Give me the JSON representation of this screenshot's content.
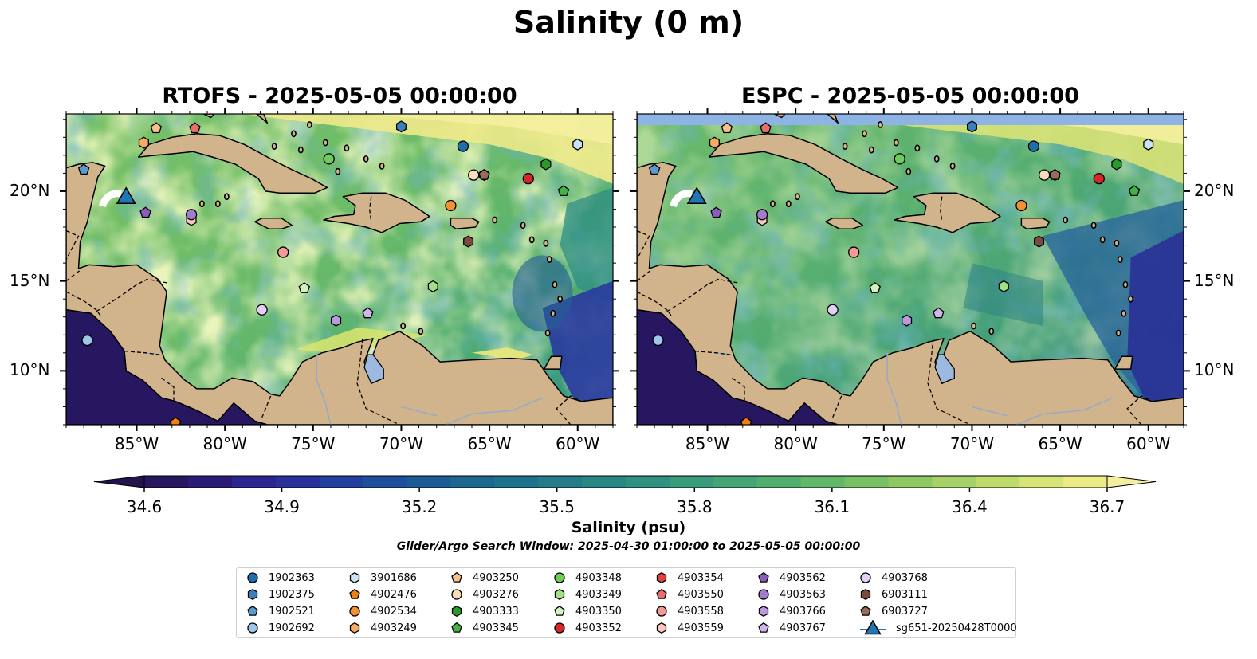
{
  "figure": {
    "suptitle": "Salinity (0 m)",
    "panels": [
      {
        "title": "RTOFS - 2025-05-05 00:00:00"
      },
      {
        "title": "ESPC - 2025-05-05 00:00:00"
      }
    ],
    "colorbar": {
      "label": "Salinity (psu)",
      "min": 34.6,
      "max": 36.7,
      "step": 0.1,
      "ticks": [
        "34.6",
        "34.9",
        "35.2",
        "35.5",
        "35.8",
        "36.1",
        "36.4",
        "36.7"
      ],
      "colors": [
        "#271660",
        "#2b1b77",
        "#2b2590",
        "#27309b",
        "#2240a0",
        "#1e4f9c",
        "#1c5c96",
        "#1d6890",
        "#1f728c",
        "#237d88",
        "#288785",
        "#2e9181",
        "#379b7c",
        "#43a575",
        "#52ae6f",
        "#63b769",
        "#78c064",
        "#8dc863",
        "#a6d166",
        "#bedb6c",
        "#d6e575",
        "#eceb85"
      ],
      "under_color": "#24144e",
      "over_color": "#f4ef9e"
    },
    "search_window": "Glider/Argo Search Window: 2025-04-30 01:00:00 to 2025-05-05 00:00:00",
    "colors": {
      "land": "#d2b48c",
      "water_lake": "#9db9e0",
      "river": "#97aac6",
      "deep_pacific": "#271660",
      "nodata_band": "#8eb4e6"
    }
  },
  "axes": {
    "lon_labels": [
      "85°W",
      "80°W",
      "75°W",
      "70°W",
      "65°W",
      "60°W"
    ],
    "lat_labels": [
      "20°N",
      "15°N",
      "10°N"
    ],
    "lon_values": [
      -85,
      -80,
      -75,
      -70,
      -65,
      -60
    ],
    "lat_values": [
      20,
      15,
      10
    ],
    "extent": {
      "lon_min": -89,
      "lon_max": -58,
      "lat_min": 7,
      "lat_max": 24.3
    }
  },
  "legend": {
    "items": [
      {
        "id": "1902363",
        "marker": "circle",
        "color": "#1f6ea9"
      },
      {
        "id": "1902375",
        "marker": "hexagon",
        "color": "#3a7fb8"
      },
      {
        "id": "1902521",
        "marker": "pentagon",
        "color": "#5b9bd0"
      },
      {
        "id": "1902692",
        "marker": "circle",
        "color": "#9ec6e8"
      },
      {
        "id": "3901686",
        "marker": "hexagon",
        "color": "#c9e3f5"
      },
      {
        "id": "4902476",
        "marker": "pentagon",
        "color": "#f07f12"
      },
      {
        "id": "4902534",
        "marker": "circle",
        "color": "#f5902e"
      },
      {
        "id": "4903249",
        "marker": "hexagon",
        "color": "#f7ac62"
      },
      {
        "id": "4903250",
        "marker": "pentagon",
        "color": "#f8c08a"
      },
      {
        "id": "4903276",
        "marker": "circle",
        "color": "#fbdcba"
      },
      {
        "id": "4903333",
        "marker": "hexagon",
        "color": "#2a9a2a"
      },
      {
        "id": "4903345",
        "marker": "pentagon",
        "color": "#44b344"
      },
      {
        "id": "4903348",
        "marker": "circle",
        "color": "#6ecb5c"
      },
      {
        "id": "4903349",
        "marker": "hexagon",
        "color": "#a1df89"
      },
      {
        "id": "4903350",
        "marker": "pentagon",
        "color": "#d3f2c0"
      },
      {
        "id": "4903352",
        "marker": "circle",
        "color": "#d92727"
      },
      {
        "id": "4903354",
        "marker": "hexagon",
        "color": "#e23f3f"
      },
      {
        "id": "4903550",
        "marker": "pentagon",
        "color": "#ec6b6b"
      },
      {
        "id": "4903558",
        "marker": "circle",
        "color": "#f59a97"
      },
      {
        "id": "4903559",
        "marker": "hexagon",
        "color": "#f9c7c2"
      },
      {
        "id": "4903562",
        "marker": "pentagon",
        "color": "#8e5cbf"
      },
      {
        "id": "4903563",
        "marker": "circle",
        "color": "#a27ccf"
      },
      {
        "id": "4903766",
        "marker": "hexagon",
        "color": "#b99ade"
      },
      {
        "id": "4903767",
        "marker": "pentagon",
        "color": "#cdb6ea"
      },
      {
        "id": "4903768",
        "marker": "circle",
        "color": "#e1cff5"
      },
      {
        "id": "6903111",
        "marker": "hexagon",
        "color": "#7b4a3e"
      },
      {
        "id": "6903727",
        "marker": "pentagon",
        "color": "#9a6a5a"
      },
      {
        "id": "sg651-20250428T0000",
        "marker": "triangle",
        "color": "#1f77b4"
      }
    ]
  },
  "platforms": [
    {
      "id": "1902363",
      "lon": -66.5,
      "lat": 22.5
    },
    {
      "id": "1902375",
      "lon": -70.0,
      "lat": 23.6
    },
    {
      "id": "1902521",
      "lon": -88.0,
      "lat": 21.2
    },
    {
      "id": "1902692",
      "lon": -87.8,
      "lat": 11.7
    },
    {
      "id": "3901686",
      "lon": -60.0,
      "lat": 22.6
    },
    {
      "id": "4902476",
      "lon": -82.8,
      "lat": 7.1
    },
    {
      "id": "4902534",
      "lon": -67.2,
      "lat": 19.2
    },
    {
      "id": "4903249",
      "lon": -84.6,
      "lat": 22.7
    },
    {
      "id": "4903250",
      "lon": -83.9,
      "lat": 23.5
    },
    {
      "id": "4903276",
      "lon": -65.9,
      "lat": 20.9
    },
    {
      "id": "4903333",
      "lon": -61.8,
      "lat": 21.5
    },
    {
      "id": "4903345",
      "lon": -60.8,
      "lat": 20.0
    },
    {
      "id": "4903348",
      "lon": -74.1,
      "lat": 21.8
    },
    {
      "id": "4903349",
      "lon": -68.2,
      "lat": 14.7
    },
    {
      "id": "4903350",
      "lon": -75.5,
      "lat": 14.6
    },
    {
      "id": "4903352",
      "lon": -62.8,
      "lat": 20.7
    },
    {
      "id": "4903354",
      "lon": -65.3,
      "lat": 20.9
    },
    {
      "id": "4903550",
      "lon": -81.7,
      "lat": 23.5
    },
    {
      "id": "4903558",
      "lon": -76.7,
      "lat": 16.6
    },
    {
      "id": "4903559",
      "lon": -81.9,
      "lat": 18.4
    },
    {
      "id": "4903562",
      "lon": -84.5,
      "lat": 18.8
    },
    {
      "id": "4903563",
      "lon": -81.9,
      "lat": 18.7
    },
    {
      "id": "4903766",
      "lon": -73.7,
      "lat": 12.8
    },
    {
      "id": "4903767",
      "lon": -71.9,
      "lat": 13.2
    },
    {
      "id": "4903768",
      "lon": -77.9,
      "lat": 13.4
    },
    {
      "id": "6903111",
      "lon": -66.2,
      "lat": 17.2
    },
    {
      "id": "6903727",
      "lon": -65.3,
      "lat": 20.9
    },
    {
      "id": "sg651-20250428T0000",
      "lon": -85.6,
      "lat": 19.7
    }
  ]
}
